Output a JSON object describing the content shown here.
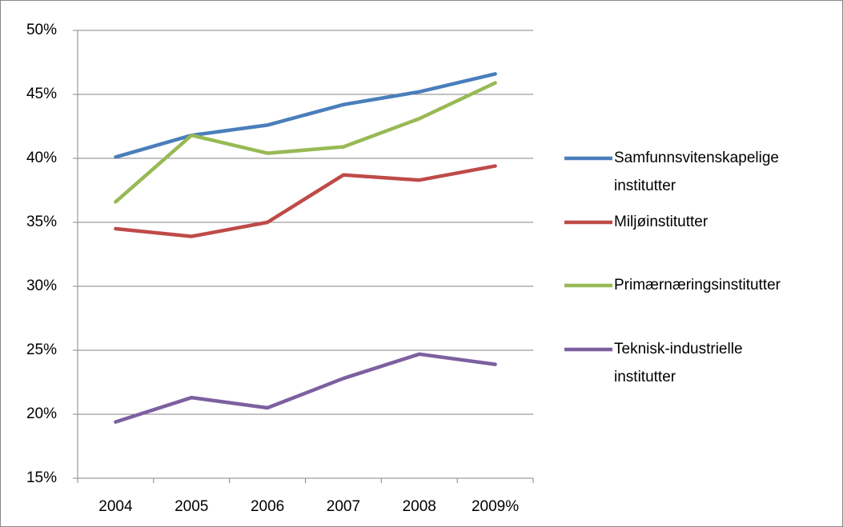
{
  "chart_data": {
    "type": "line",
    "categories": [
      "2004",
      "2005",
      "2006",
      "2007",
      "2008",
      "2009%"
    ],
    "series": [
      {
        "name": "Samfunnsvitenskapelige institutter",
        "color": "#4a7ebb",
        "values": [
          40.1,
          41.8,
          42.6,
          44.2,
          45.2,
          46.6
        ]
      },
      {
        "name": "Miljøinstitutter",
        "color": "#be4b48",
        "values": [
          34.5,
          33.9,
          35.0,
          38.7,
          38.3,
          39.4
        ]
      },
      {
        "name": "Primærnæringsinstitutter",
        "color": "#98b954",
        "values": [
          36.6,
          41.8,
          40.4,
          40.9,
          43.1,
          45.9
        ]
      },
      {
        "name": "Teknisk-industrielle institutter",
        "color": "#7d60a0",
        "values": [
          19.4,
          21.3,
          20.5,
          22.8,
          24.7,
          23.9
        ]
      }
    ],
    "ylim": [
      15,
      50
    ],
    "yticks": [
      {
        "value": 15,
        "label": "15%"
      },
      {
        "value": 20,
        "label": "20%"
      },
      {
        "value": 25,
        "label": "25%"
      },
      {
        "value": 30,
        "label": "30%"
      },
      {
        "value": 35,
        "label": "35%"
      },
      {
        "value": 40,
        "label": "40%"
      },
      {
        "value": 45,
        "label": "45%"
      },
      {
        "value": 50,
        "label": "50%"
      }
    ],
    "grid": true,
    "legend": "right"
  }
}
